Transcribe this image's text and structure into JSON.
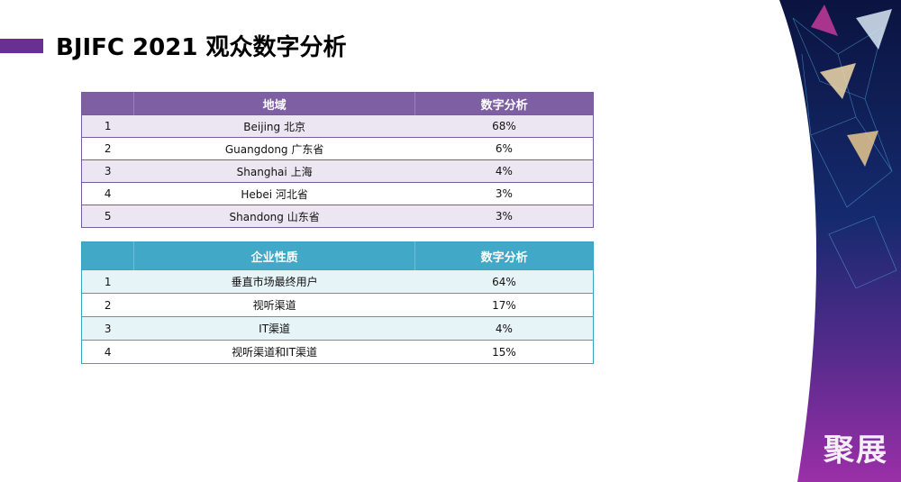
{
  "title": "BJIFC 2021 观众数字分析",
  "logo_text": "聚展",
  "colors": {
    "accent_purple": "#6a3091",
    "table1_header": "#7f5fa4",
    "table2_header": "#42a8c8"
  },
  "table_region": {
    "headers": [
      "",
      "地域",
      "数字分析"
    ],
    "rows": [
      {
        "rank": "1",
        "name": "Beijing 北京",
        "value": "68%"
      },
      {
        "rank": "2",
        "name": "Guangdong  广东省",
        "value": "6%"
      },
      {
        "rank": "3",
        "name": "Shanghai  上海",
        "value": "4%"
      },
      {
        "rank": "4",
        "name": "Hebei  河北省",
        "value": "3%"
      },
      {
        "rank": "5",
        "name": "Shandong  山东省",
        "value": "3%"
      }
    ]
  },
  "table_industry": {
    "headers": [
      "",
      "企业性质",
      "数字分析"
    ],
    "rows": [
      {
        "rank": "1",
        "name": "垂直市场最终用户",
        "value": "64%"
      },
      {
        "rank": "2",
        "name": "视听渠道",
        "value": "17%"
      },
      {
        "rank": "3",
        "name": "IT渠道",
        "value": "4%"
      },
      {
        "rank": "4",
        "name": "视听渠道和IT渠道",
        "value": "15%"
      }
    ]
  }
}
